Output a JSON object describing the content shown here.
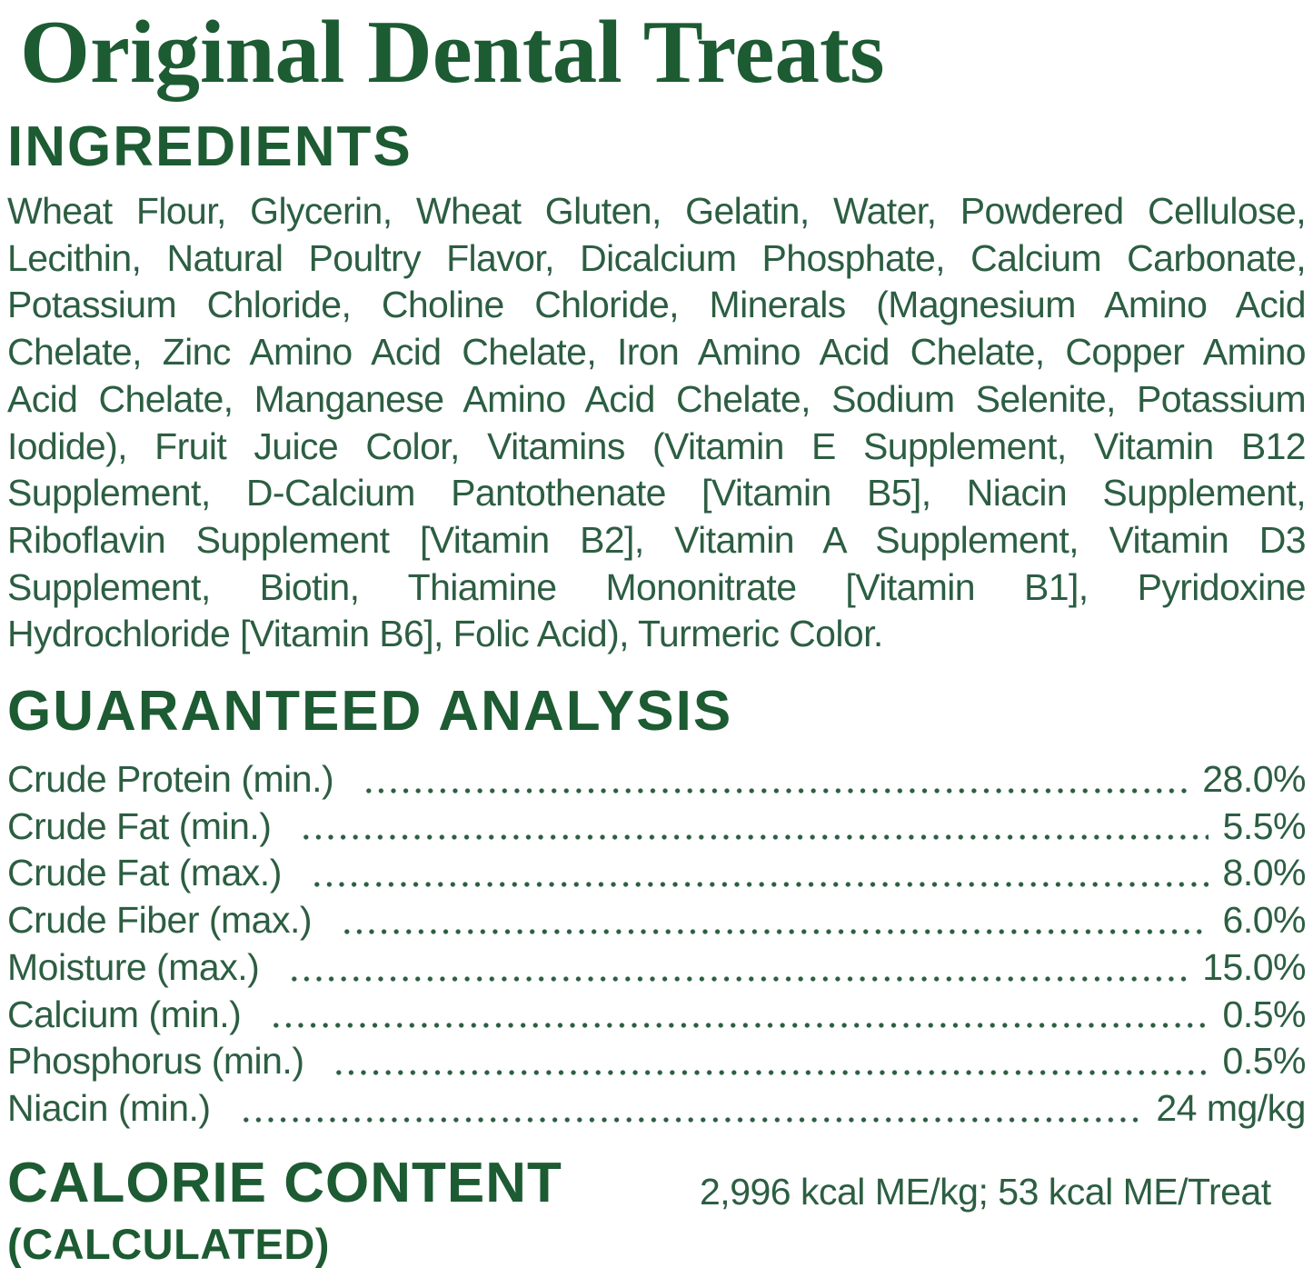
{
  "page": {
    "title": "Original Dental Treats"
  },
  "ingredients": {
    "heading": "INGREDIENTS",
    "lines": [
      "Wheat Flour, Glycerin, Wheat Gluten, Gelatin, Water, Powdered Cellulose,",
      "Lecithin, Natural Poultry Flavor, Dicalcium Phosphate, Calcium Carbonate,",
      "Potassium Chloride, Choline Chloride, Minerals (Magnesium Amino Acid",
      "Chelate, Zinc Amino Acid Chelate, Iron Amino Acid Chelate, Copper Amino",
      "Acid Chelate, Manganese Amino Acid Chelate, Sodium Selenite, Potassium",
      "Iodide), Fruit Juice Color, Vitamins (Vitamin E Supplement, Vitamin B12",
      "Supplement, D-Calcium Pantothenate [Vitamin B5], Niacin Supplement,",
      "Riboflavin Supplement [Vitamin B2], Vitamin A Supplement, Vitamin D3",
      "Supplement, Biotin, Thiamine Mononitrate [Vitamin B1], Pyridoxine",
      "Hydrochloride [Vitamin B6], Folic Acid), Turmeric Color."
    ]
  },
  "analysis": {
    "heading": "GUARANTEED ANALYSIS",
    "rows": [
      {
        "label": "Crude Protein (min.)",
        "value": "28.0%"
      },
      {
        "label": "Crude Fat (min.)",
        "value": "5.5%"
      },
      {
        "label": "Crude Fat (max.)",
        "value": "8.0%"
      },
      {
        "label": "Crude Fiber (max.)",
        "value": "6.0%"
      },
      {
        "label": "Moisture (max.)",
        "value": "15.0%"
      },
      {
        "label": "Calcium (min.)",
        "value": "0.5%"
      },
      {
        "label": "Phosphorus (min.)",
        "value": "0.5%"
      },
      {
        "label": "Niacin (min.)",
        "value": "24 mg/kg"
      }
    ]
  },
  "calorie": {
    "heading": "CALORIE CONTENT",
    "subheading": "(CALCULATED)",
    "value": "2,996 kcal ME/kg; 53 kcal ME/Treat"
  },
  "colors": {
    "heading_green": "#1d5b33",
    "body_green": "#2c5e42"
  }
}
